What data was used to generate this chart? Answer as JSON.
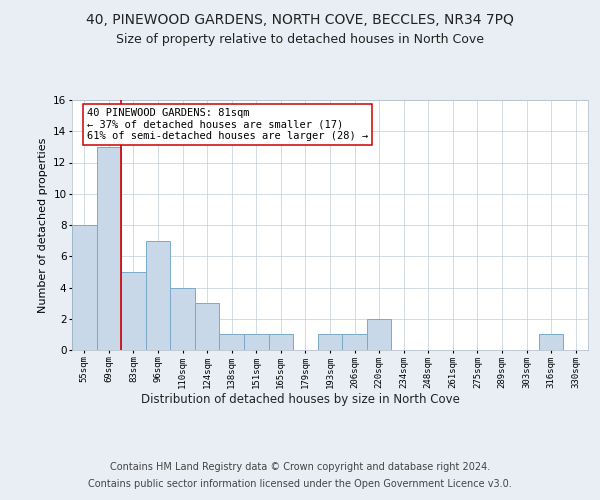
{
  "title": "40, PINEWOOD GARDENS, NORTH COVE, BECCLES, NR34 7PQ",
  "subtitle": "Size of property relative to detached houses in North Cove",
  "xlabel": "Distribution of detached houses by size in North Cove",
  "ylabel": "Number of detached properties",
  "bins": [
    "55sqm",
    "69sqm",
    "83sqm",
    "96sqm",
    "110sqm",
    "124sqm",
    "138sqm",
    "151sqm",
    "165sqm",
    "179sqm",
    "193sqm",
    "206sqm",
    "220sqm",
    "234sqm",
    "248sqm",
    "261sqm",
    "275sqm",
    "289sqm",
    "303sqm",
    "316sqm",
    "330sqm"
  ],
  "bar_values": [
    8,
    13,
    5,
    7,
    4,
    3,
    1,
    1,
    1,
    0,
    1,
    1,
    2,
    0,
    0,
    0,
    0,
    0,
    0,
    1,
    0
  ],
  "bar_color": "#c8d8e8",
  "bar_edge_color": "#7aaac8",
  "bar_edge_width": 0.7,
  "vline_x": 1.5,
  "vline_color": "#cc0000",
  "annotation_text": "40 PINEWOOD GARDENS: 81sqm\n← 37% of detached houses are smaller (17)\n61% of semi-detached houses are larger (28) →",
  "annotation_box_color": "#ffffff",
  "annotation_box_edge": "#cc0000",
  "ylim": [
    0,
    16
  ],
  "yticks": [
    0,
    2,
    4,
    6,
    8,
    10,
    12,
    14,
    16
  ],
  "background_color": "#e8eef4",
  "plot_background": "#ffffff",
  "footer1": "Contains HM Land Registry data © Crown copyright and database right 2024.",
  "footer2": "Contains public sector information licensed under the Open Government Licence v3.0.",
  "title_fontsize": 10,
  "subtitle_fontsize": 9,
  "xlabel_fontsize": 8.5,
  "ylabel_fontsize": 8,
  "annotation_fontsize": 7.5,
  "footer_fontsize": 7
}
